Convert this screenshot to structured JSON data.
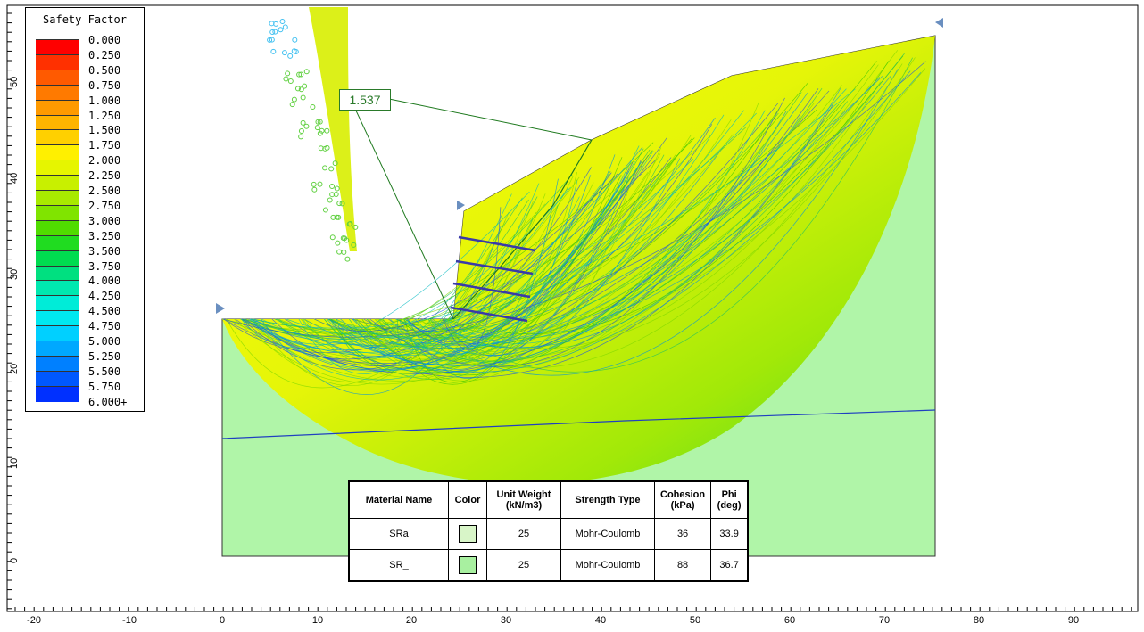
{
  "legend": {
    "title": "Safety Factor",
    "entries": [
      {
        "label": "0.000",
        "color": "#ff0000"
      },
      {
        "label": "0.250",
        "color": "#ff3000"
      },
      {
        "label": "0.500",
        "color": "#ff5a00"
      },
      {
        "label": "0.750",
        "color": "#ff7a00"
      },
      {
        "label": "1.000",
        "color": "#ff9a00"
      },
      {
        "label": "1.250",
        "color": "#ffb400"
      },
      {
        "label": "1.500",
        "color": "#ffd000"
      },
      {
        "label": "1.750",
        "color": "#fff000"
      },
      {
        "label": "2.000",
        "color": "#e6f500"
      },
      {
        "label": "2.250",
        "color": "#c8f000"
      },
      {
        "label": "2.500",
        "color": "#a8ea00"
      },
      {
        "label": "2.750",
        "color": "#80e400"
      },
      {
        "label": "3.000",
        "color": "#50dc00"
      },
      {
        "label": "3.250",
        "color": "#20dc20"
      },
      {
        "label": "3.500",
        "color": "#00dc50"
      },
      {
        "label": "3.750",
        "color": "#00e080"
      },
      {
        "label": "4.000",
        "color": "#00e8b0"
      },
      {
        "label": "4.250",
        "color": "#00ecd8"
      },
      {
        "label": "4.500",
        "color": "#00e8f0"
      },
      {
        "label": "4.750",
        "color": "#00d0ff"
      },
      {
        "label": "5.000",
        "color": "#00a8ff"
      },
      {
        "label": "5.250",
        "color": "#0080ff"
      },
      {
        "label": "5.500",
        "color": "#0058ff"
      },
      {
        "label": "5.750",
        "color": "#0030ff"
      },
      {
        "label": "6.000+",
        "color": "#0000e0"
      }
    ]
  },
  "callout": {
    "value": "1.537"
  },
  "axes": {
    "x_ticks": [
      "-20",
      "-10",
      "0",
      "10",
      "20",
      "30",
      "40",
      "50",
      "60",
      "70",
      "80",
      "90"
    ],
    "y_ticks": [
      "50",
      "40",
      "30",
      "20",
      "10",
      "0"
    ]
  },
  "materials": {
    "headers": {
      "name": "Material Name",
      "color": "Color",
      "unit_weight": "Unit Weight (kN/m3)",
      "strength_type": "Strength Type",
      "cohesion": "Cohesion (kPa)",
      "phi": "Phi (deg)"
    },
    "rows": [
      {
        "name": "SRa",
        "fill": "#d8f5c8",
        "unit_weight": "25",
        "strength_type": "Mohr-Coulomb",
        "cohesion": "36",
        "phi": "33.9"
      },
      {
        "name": "SR_",
        "fill": "#a8f0a0",
        "unit_weight": "25",
        "strength_type": "Mohr-Coulomb",
        "cohesion": "88",
        "phi": "36.7"
      }
    ]
  },
  "colors": {
    "soil": "#b0f5a8",
    "critical": "#1f7a1f",
    "anchor": "#3a3aa8"
  }
}
